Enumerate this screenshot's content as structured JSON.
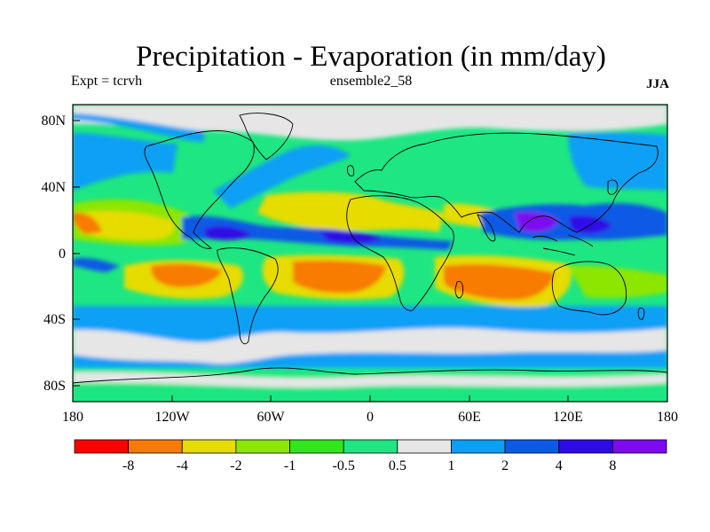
{
  "title": "Precipitation - Evaporation (in mm/day)",
  "subtitle": {
    "left": "Expt = tcrvh",
    "center": "ensemble2_58",
    "right": "JJA"
  },
  "lat_labels": [
    "80N",
    "40N",
    "0",
    "40S",
    "80S"
  ],
  "lon_labels": [
    "180",
    "120W",
    "60W",
    "0",
    "60E",
    "120E",
    "180"
  ],
  "legend": {
    "colors": [
      "#ff0000",
      "#f77b00",
      "#e6dc00",
      "#8ce600",
      "#32e61e",
      "#1ee682",
      "#e6e6e6",
      "#0aa0f5",
      "#0a5ae6",
      "#2d0ae6",
      "#7d0af0"
    ],
    "labels": [
      "-8",
      "-4",
      "-2",
      "-1",
      "-0.5",
      "0.5",
      "1",
      "2",
      "4",
      "8"
    ]
  },
  "chart_data": {
    "type": "heatmap",
    "title": "Precipitation - Evaporation (in mm/day)",
    "variable": "Precipitation - Evaporation",
    "units": "mm/day",
    "experiment": "Expt = tcrvh",
    "run": "ensemble2_58",
    "season": "JJA",
    "x_range": [
      -180,
      180
    ],
    "y_range": [
      -90,
      90
    ],
    "contour_levels": [
      -8,
      -4,
      -2,
      -1,
      -0.5,
      0.5,
      1,
      2,
      4,
      8
    ],
    "zones": [
      {
        "lat": 12,
        "description": "ITCZ strong positive (4 to >8) over W Pacific, Bay of Bengal, Central America, W Africa"
      },
      {
        "lat": -20,
        "description": "Subtropical negative (-2 to -4) over S Indian, S Atlantic, SE Pacific oceans"
      },
      {
        "lat": 25,
        "description": "N subtropical negative (-1 to -4) over N Pacific, N Atlantic, Arabian Sea"
      },
      {
        "lat": -55,
        "description": "Southern Ocean positive (0.5 to 2)"
      },
      {
        "lat": 80,
        "description": "Arctic near zero (-0.5 to 1)"
      }
    ]
  }
}
